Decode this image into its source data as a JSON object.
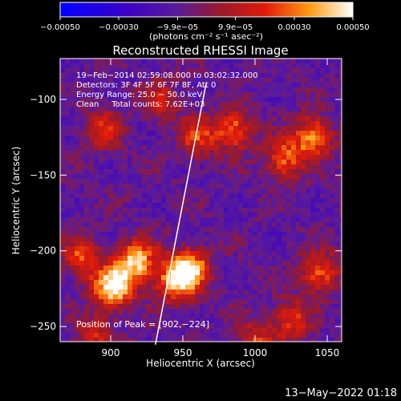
{
  "chart_data": {
    "type": "heatmap",
    "title": "Reconstructed RHESSI Image",
    "xlabel": "Heliocentric X (arcsec)",
    "ylabel": "Heliocentric Y (arcsec)",
    "xlim": [
      865,
      1060
    ],
    "ylim": [
      -260,
      -73
    ],
    "xticks": [
      900,
      950,
      1000,
      1050
    ],
    "yticks": [
      -100,
      -150,
      -200,
      -250
    ],
    "xtick_labels": [
      "900",
      "950",
      "1000",
      "1050"
    ],
    "ytick_labels": [
      "−100",
      "−150",
      "−200",
      "−250"
    ],
    "colorbar": {
      "range": [
        -0.0005,
        0.0005
      ],
      "ticks": [
        -0.0005,
        -0.0003,
        -9.9e-05,
        9.9e-05,
        0.0003,
        0.0005
      ],
      "tick_labels": [
        "−0.00050",
        "−0.00030",
        "−9.9e−05",
        "9.9e−05",
        "0.00030",
        "0.00050"
      ],
      "label": "(photons cm⁻² s⁻¹ asec⁻²)"
    },
    "annotations": [
      "19−Feb−2014 02:59:08.000 to 03:02:32.000",
      "Detectors: 3F 4F 5F 6F 7F 8F, Att 0",
      "Energy Range: 25.0 − 50.0 keV",
      "Clean     Total counts: 7.62E+03"
    ],
    "peak_label": "Position of Peak = [902,−224]",
    "peak": [
      902,
      -224
    ],
    "limb_line": [
      [
        931,
        -262
      ],
      [
        966,
        -90
      ]
    ],
    "hotspots": [
      {
        "x": 902,
        "y": -224,
        "amp": 1.0
      },
      {
        "x": 918,
        "y": -207,
        "amp": 0.85
      },
      {
        "x": 945,
        "y": -220,
        "amp": 0.75
      },
      {
        "x": 955,
        "y": -212,
        "amp": 0.8
      },
      {
        "x": 880,
        "y": -205,
        "amp": 0.55
      },
      {
        "x": 1040,
        "y": -125,
        "amp": 0.75
      },
      {
        "x": 985,
        "y": -120,
        "amp": 0.65
      },
      {
        "x": 1020,
        "y": -140,
        "amp": 0.6
      },
      {
        "x": 960,
        "y": -125,
        "amp": 0.5
      },
      {
        "x": 895,
        "y": -120,
        "amp": 0.45
      },
      {
        "x": 1045,
        "y": -215,
        "amp": 0.6
      },
      {
        "x": 1025,
        "y": -245,
        "amp": 0.5
      },
      {
        "x": 1000,
        "y": -260,
        "amp": 0.45
      },
      {
        "x": 890,
        "y": -255,
        "amp": 0.4
      },
      {
        "x": 935,
        "y": -100,
        "amp": 0.35
      }
    ]
  },
  "timestamp": "13−May−2022 01:18"
}
